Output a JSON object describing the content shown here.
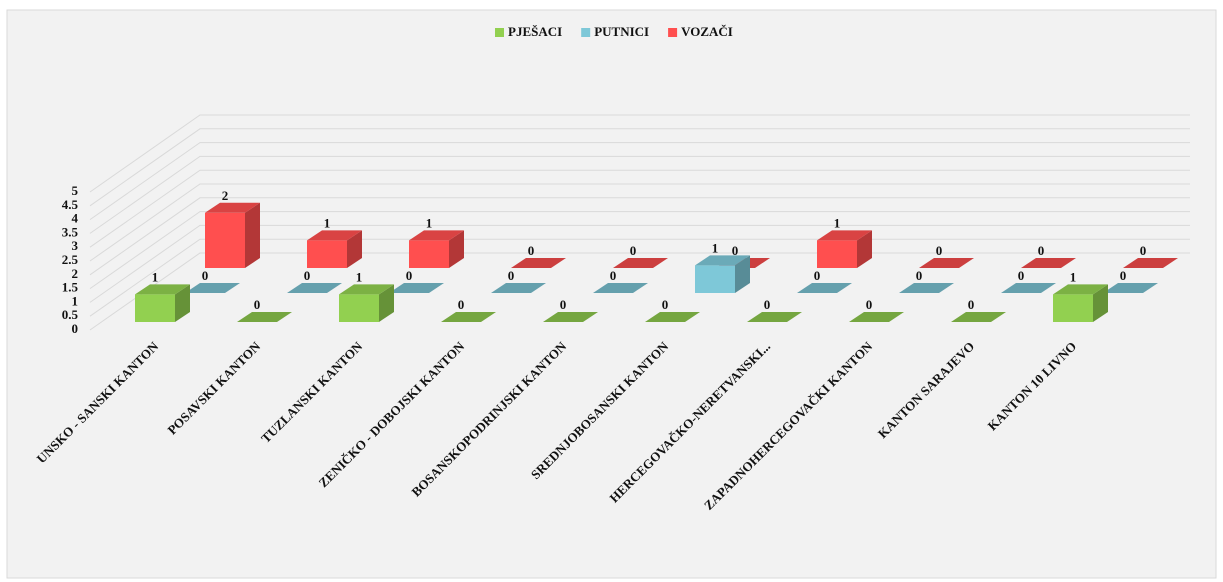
{
  "chart_data": {
    "type": "bar3d",
    "categories": [
      "UNSKO - SANSKI KANTON",
      "POSAVSKI KANTON",
      "TUZLANSKI KANTON",
      "ZENIČKO - DOBOJSKI KANTON",
      "BOSANSKOPODRINJSKI KANTON",
      "SREDNJOBOSANSKI KANTON",
      "HERCEGOVAČKO-NERETVANSKI...",
      "ZAPADNOHERCEGOVAČKI KANTON",
      "KANTON SARAJEVO",
      "KANTON 10 LIVNO"
    ],
    "series": [
      {
        "name": "PJEŠACI",
        "color": "#92d050",
        "values": [
          1,
          0,
          1,
          0,
          0,
          0,
          0,
          0,
          0,
          1
        ]
      },
      {
        "name": "PUTNICI",
        "color": "#7ec8d8",
        "values": [
          0,
          0,
          0,
          0,
          0,
          1,
          0,
          0,
          0,
          0
        ]
      },
      {
        "name": "VOZAČI",
        "color": "#ff4f4f",
        "values": [
          2,
          1,
          1,
          0,
          0,
          0,
          1,
          0,
          0,
          0
        ]
      }
    ],
    "ylim": [
      0,
      5
    ],
    "yticks": [
      0,
      0.5,
      1,
      1.5,
      2,
      2.5,
      3,
      3.5,
      4,
      4.5,
      5
    ],
    "grid": true,
    "legend": "top"
  }
}
